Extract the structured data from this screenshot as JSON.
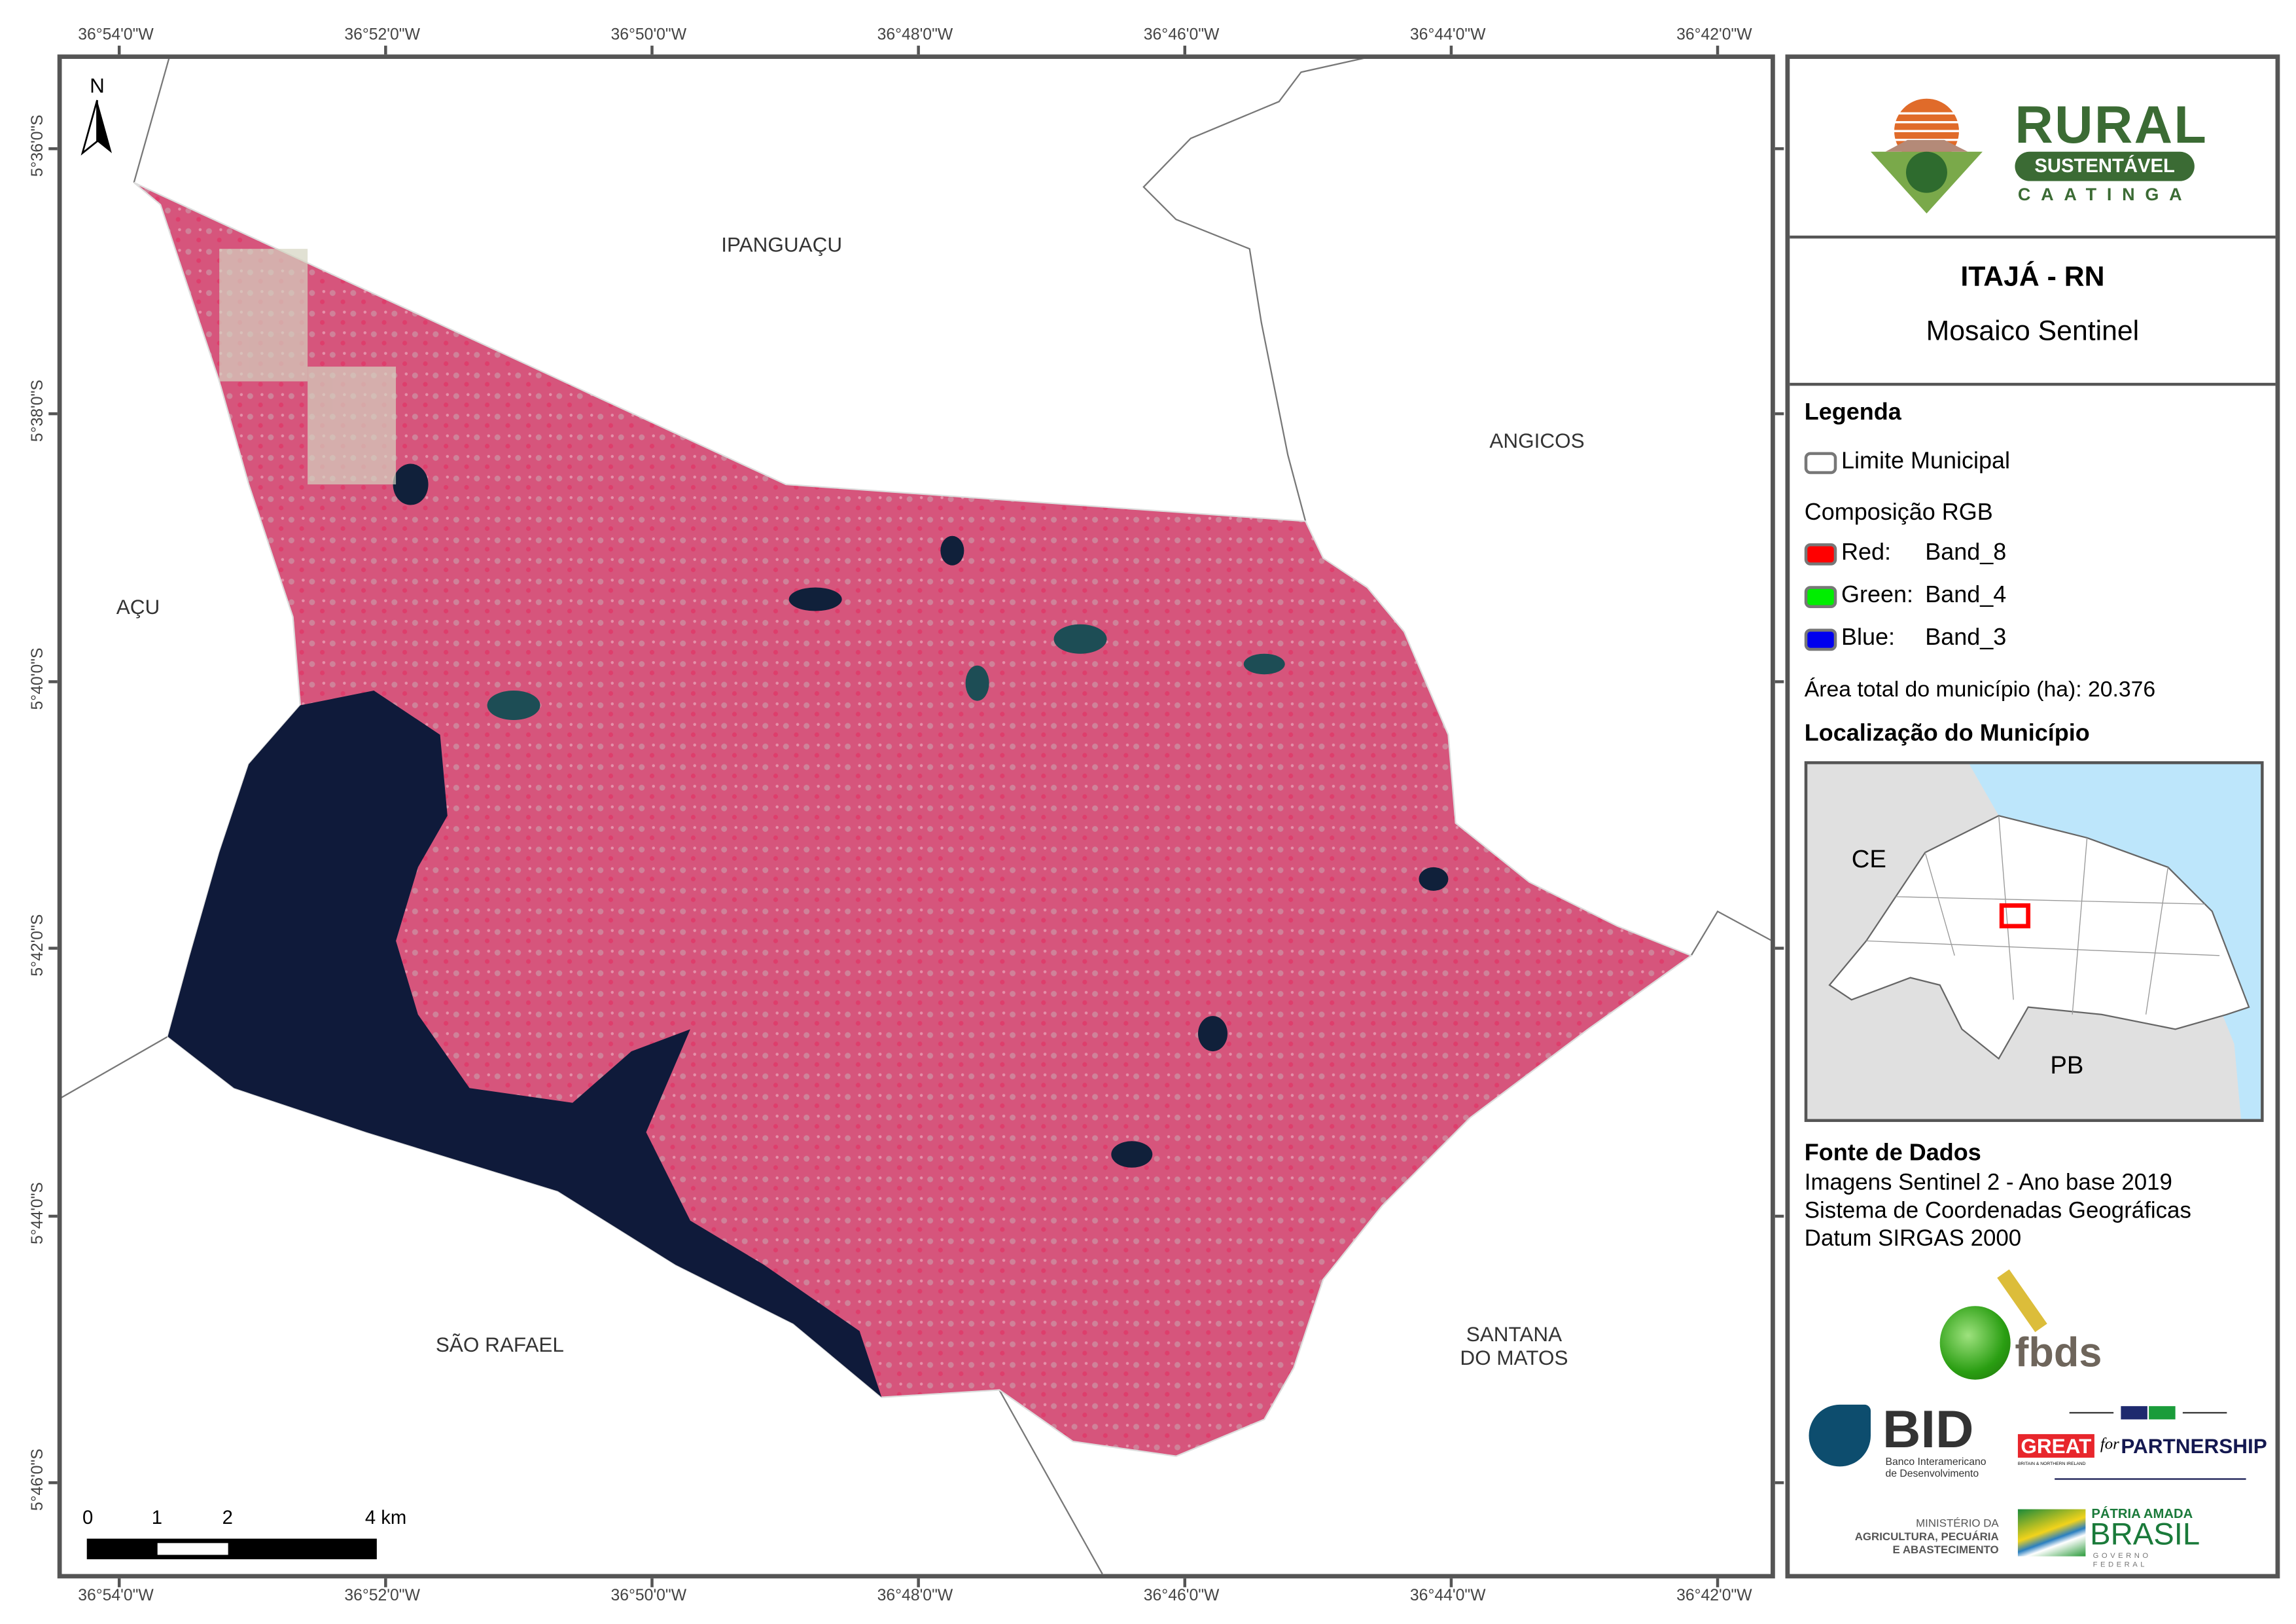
{
  "map": {
    "longitude_labels": [
      "36°54'0\"W",
      "36°52'0\"W",
      "36°50'0\"W",
      "36°48'0\"W",
      "36°46'0\"W",
      "36°44'0\"W",
      "36°42'0\"W"
    ],
    "latitude_labels": [
      "5°36'0\"S",
      "5°38'0\"S",
      "5°40'0\"S",
      "5°42'0\"S",
      "5°44'0\"S",
      "5°46'0\"S"
    ],
    "north_label": "N",
    "places": {
      "ipanguacu": "IPANGUAÇU",
      "angicos": "ANGICOS",
      "acu": "AÇU",
      "sao_rafael": "SÃO RAFAEL",
      "santana_line1": "SANTANA",
      "santana_line2": "DO MATOS"
    },
    "scale_bar": {
      "labels": [
        "0",
        "1",
        "2",
        "4 km"
      ]
    },
    "colors": {
      "vegetation": "#d9507a",
      "water": "#0f1a3a",
      "background": "#ffffff"
    }
  },
  "panel": {
    "logo": {
      "title": "RURAL",
      "badge": "SUSTENTÁVEL",
      "subtitle": "CAATINGA"
    },
    "title": "ITAJÁ - RN",
    "subtitle": "Mosaico Sentinel",
    "legend": {
      "heading": "Legenda",
      "boundary": "Limite Municipal",
      "rgb_heading": "Composição RGB",
      "red": {
        "label": "Red:",
        "band": "Band_8",
        "color": "#ff0000"
      },
      "green": {
        "label": "Green:",
        "band": "Band_4",
        "color": "#00ee00"
      },
      "blue": {
        "label": "Blue:",
        "band": "Band_3",
        "color": "#0000ee"
      },
      "area": "Área total do município (ha): 20.376",
      "location_heading": "Localização do Município"
    },
    "locator": {
      "ce": "CE",
      "pb": "PB",
      "colors": {
        "sea": "#bde6fb",
        "land": "#e0e0e0",
        "state": "#ffffff",
        "highlight": "#ff0000"
      }
    },
    "sources": {
      "heading": "Fonte de Dados",
      "lines": [
        "Imagens Sentinel 2 - Ano base 2019",
        "Sistema de Coordenadas Geográficas",
        "Datum SIRGAS 2000"
      ]
    },
    "partners": {
      "fbds": "fbds",
      "bid": "BID",
      "bid_sub1": "Banco Interamericano",
      "bid_sub2": "de Desenvolvimento",
      "great": "GREAT",
      "great_sub": "BRITAIN & NORTHERN IRELAND",
      "for": "for",
      "partnership": "PARTNERSHIP",
      "ministry1": "MINISTÉRIO DA",
      "ministry2": "AGRICULTURA, PECUÁRIA",
      "ministry3": "E ABASTECIMENTO",
      "patria": "PÁTRIA AMADA",
      "brasil": "BRASIL",
      "governo": "GOVERNO FEDERAL"
    }
  }
}
